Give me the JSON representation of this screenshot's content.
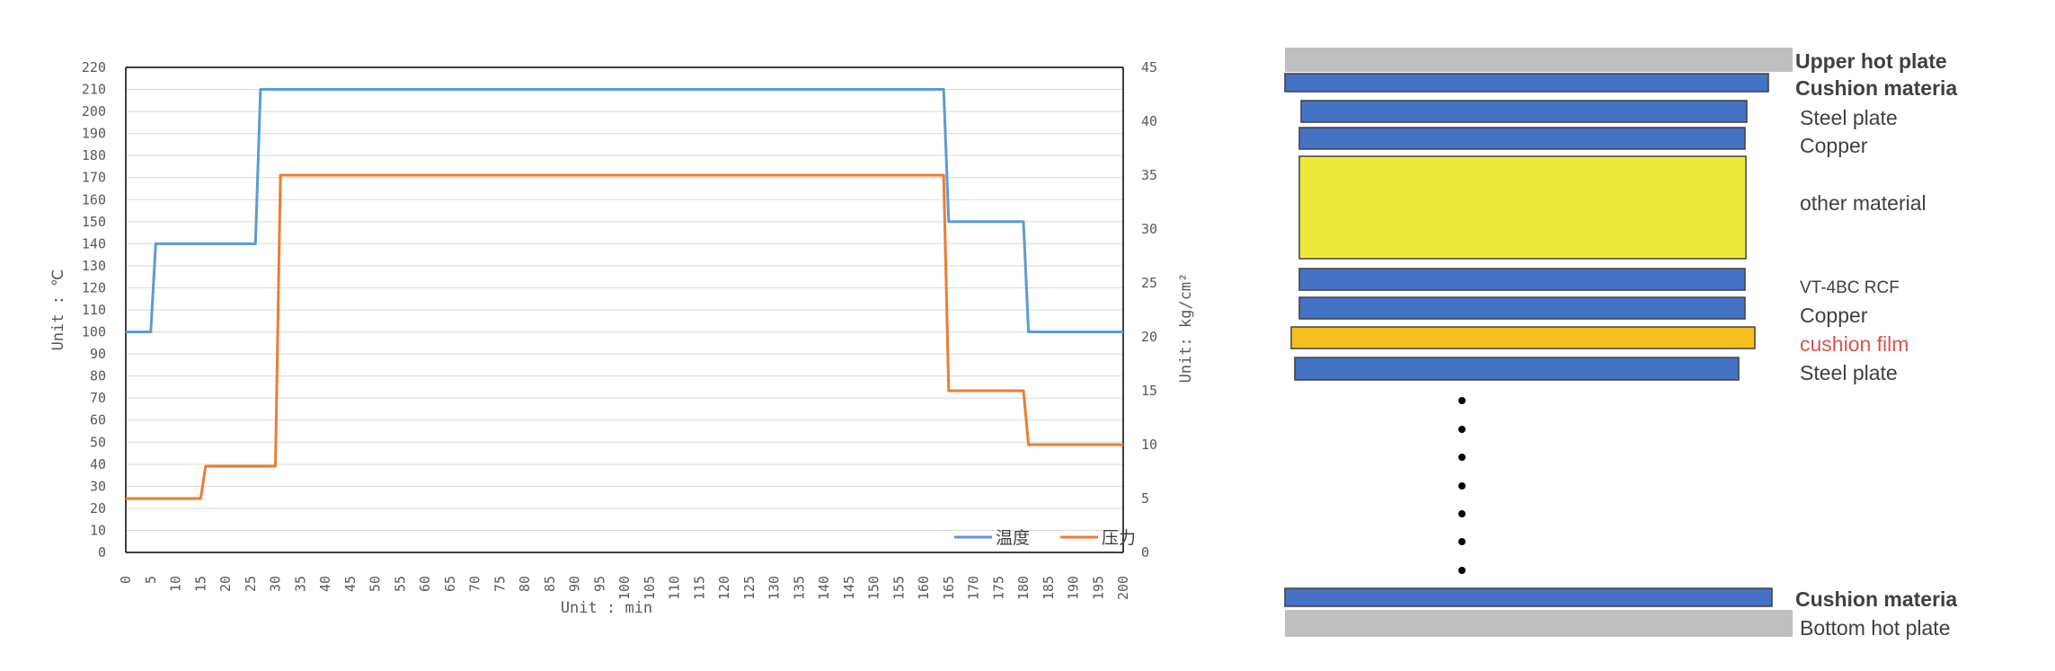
{
  "chart_data": {
    "type": "line",
    "title": "",
    "xlabel": "Unit : min",
    "ylabel": "Unit : ℃",
    "y2label": "Unit: kg/cm²",
    "xlim": [
      0,
      200
    ],
    "ylim": [
      0,
      220
    ],
    "y2lim": [
      0,
      45
    ],
    "x_ticks": [
      0,
      5,
      10,
      15,
      20,
      25,
      30,
      35,
      40,
      45,
      50,
      55,
      60,
      65,
      70,
      75,
      80,
      85,
      90,
      95,
      100,
      105,
      110,
      115,
      120,
      125,
      130,
      135,
      140,
      145,
      150,
      155,
      160,
      165,
      170,
      175,
      180,
      185,
      190,
      195,
      200
    ],
    "y_ticks": [
      0,
      10,
      20,
      30,
      40,
      50,
      60,
      70,
      80,
      90,
      100,
      110,
      120,
      130,
      140,
      150,
      160,
      170,
      180,
      190,
      200,
      210,
      220
    ],
    "y2_ticks": [
      0,
      5,
      10,
      15,
      20,
      25,
      30,
      35,
      40,
      45
    ],
    "grid": true,
    "legend_position": "bottom-right",
    "series": [
      {
        "name": "温度",
        "axis": "left",
        "color": "#5b9bd5",
        "points": [
          [
            0,
            100
          ],
          [
            5,
            100
          ],
          [
            6,
            140
          ],
          [
            26,
            140
          ],
          [
            27,
            210
          ],
          [
            164,
            210
          ],
          [
            165,
            150
          ],
          [
            180,
            150
          ],
          [
            181,
            100
          ],
          [
            200,
            100
          ]
        ]
      },
      {
        "name": "压力",
        "axis": "right",
        "color": "#ed7d31",
        "points": [
          [
            0,
            5
          ],
          [
            15,
            5
          ],
          [
            16,
            8
          ],
          [
            30,
            8
          ],
          [
            31,
            35
          ],
          [
            164,
            35
          ],
          [
            165,
            15
          ],
          [
            180,
            15
          ],
          [
            181,
            10
          ],
          [
            200,
            10
          ]
        ]
      }
    ]
  },
  "layer_stack": {
    "layers": [
      {
        "label": "Upper hot plate",
        "color": "#bfbfbf",
        "style": "bold"
      },
      {
        "label": "Cushion materia",
        "color": "#4472c4",
        "style": "bold"
      },
      {
        "label": "Steel plate",
        "color": "#4472c4",
        "style": "normal"
      },
      {
        "label": "Copper",
        "color": "#4472c4",
        "style": "normal"
      },
      {
        "label": "other material",
        "color": "#eeea3c",
        "style": "normal"
      },
      {
        "label": "VT-4BC RCF",
        "color": "#4472c4",
        "style": "small"
      },
      {
        "label": "Copper",
        "color": "#4472c4",
        "style": "normal"
      },
      {
        "label": "cushion film",
        "color": "#f5bf1e",
        "style": "red"
      },
      {
        "label": "Steel plate",
        "color": "#4472c4",
        "style": "normal"
      },
      {
        "label": "Cushion materia",
        "color": "#4472c4",
        "style": "bold"
      },
      {
        "label": "Bottom hot plate",
        "color": "#bfbfbf",
        "style": "normal"
      }
    ]
  }
}
